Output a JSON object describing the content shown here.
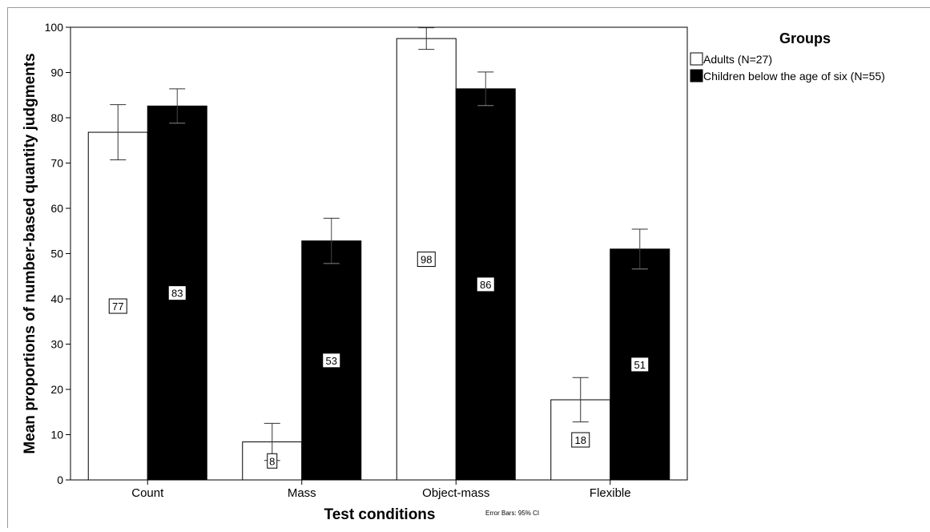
{
  "chart_data": {
    "type": "bar",
    "categories": [
      "Count",
      "Mass",
      "Object-mass",
      "Flexible"
    ],
    "series": [
      {
        "name": "Adults (N=27)",
        "color": "#ffffff",
        "values": [
          76.8,
          8.4,
          97.5,
          17.7
        ],
        "ci_low": [
          70.7,
          4.3,
          95.1,
          12.8
        ],
        "ci_high": [
          82.9,
          12.5,
          99.9,
          22.6
        ],
        "labels": [
          "77",
          "8",
          "98",
          "18"
        ]
      },
      {
        "name": "Children below the age of six (N=55)",
        "color": "#000000",
        "values": [
          82.6,
          52.8,
          86.4,
          51.0
        ],
        "ci_low": [
          78.8,
          47.8,
          82.7,
          46.6
        ],
        "ci_high": [
          86.4,
          57.8,
          90.1,
          55.4
        ],
        "labels": [
          "83",
          "53",
          "86",
          "51"
        ]
      }
    ],
    "xlabel": "Test conditions",
    "ylabel": "Mean proportions of number-based quantity judgments",
    "ylim": [
      0,
      100
    ],
    "yticks": [
      0,
      10,
      20,
      30,
      40,
      50,
      60,
      70,
      80,
      90,
      100
    ],
    "legend_title": "Groups",
    "legend_position": "top-right",
    "footnote": "Error Bars: 95% CI",
    "grid": false
  }
}
